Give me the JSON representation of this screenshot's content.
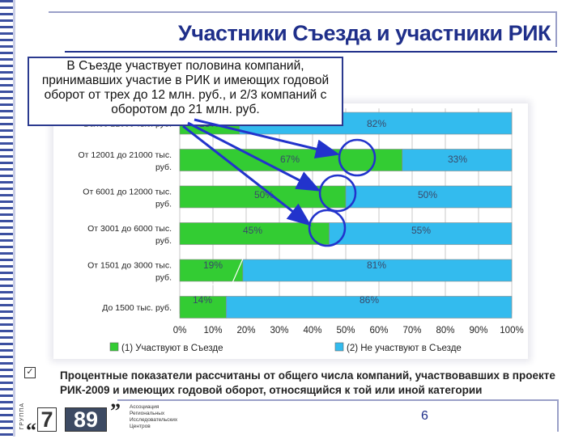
{
  "title": "Участники Съезда и участники РИК",
  "callout": "В Съезде участвует половина компаний, принимавших участие в РИК и имеющих годовой оборот от трех до 12 млн. руб., и 2/3 компаний с оборотом до 21 млн. руб.",
  "note": "Процентные показатели рассчитаны от общего числа компаний, участвовавших в проекте РИК-2009 и имеющих годовой оборот, относящийся к той или иной категории",
  "page_number": "6",
  "logo": {
    "vertical_text": "ГРУППА",
    "open_quote": "“",
    "close_quote": "”",
    "digit1": "7",
    "digit2": "89",
    "text": "Ассоциация Региональных Исследовательских Центров"
  },
  "colors": {
    "green": "#33cc33",
    "blue": "#33bbee",
    "arrow": "#2233cc"
  },
  "icons": {
    "note-bullet": "checkbox-icon"
  },
  "chart_data": {
    "type": "bar",
    "orientation": "horizontal",
    "stacked": true,
    "categories": [
      "Более 21000 тыс. руб.",
      "От 12001 до 21000 тыс. руб.",
      "От 6001 до 12000 тыс. руб.",
      "От 3001 до 6000 тыс. руб.",
      "От 1501 до 3000 тыс. руб.",
      "До 1500 тыс. руб."
    ],
    "series": [
      {
        "name": "(1) Участвуют в Съезде",
        "values": [
          18,
          67,
          50,
          45,
          19,
          14
        ],
        "labels": [
          "18%",
          "67%",
          "50%",
          "45%",
          "19%",
          "14%"
        ],
        "color": "#33cc33"
      },
      {
        "name": "(2) Не участвуют в Съезде",
        "values": [
          82,
          33,
          50,
          55,
          81,
          86
        ],
        "labels": [
          "82%",
          "33%",
          "50%",
          "55%",
          "81%",
          "86%"
        ],
        "color": "#33bbee"
      }
    ],
    "xlim": [
      0,
      100
    ],
    "xticks": [
      "0%",
      "10%",
      "20%",
      "30%",
      "40%",
      "50%",
      "60%",
      "70%",
      "80%",
      "90%",
      "100%"
    ],
    "grid": true,
    "legend_position": "bottom"
  }
}
